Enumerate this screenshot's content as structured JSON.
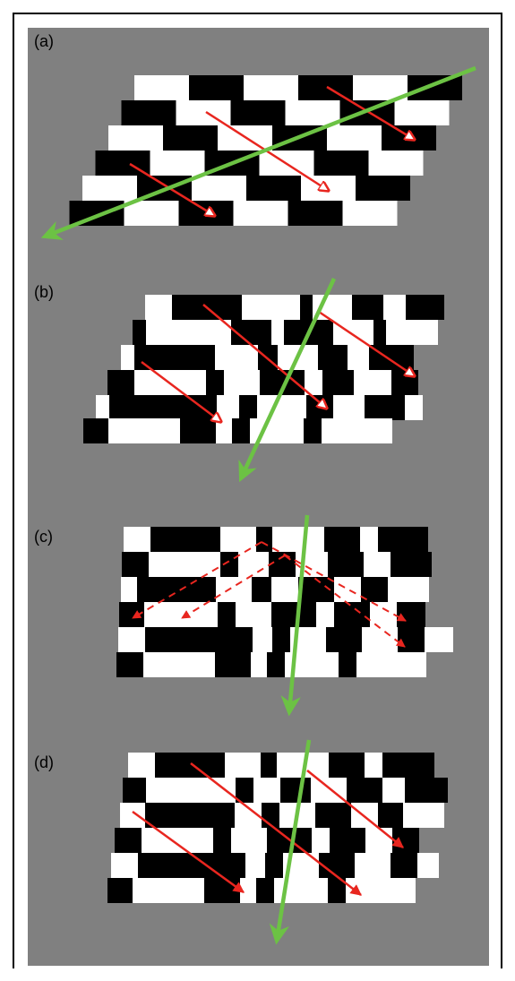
{
  "figure": {
    "background_color": "#808080",
    "frame_color": "#000000",
    "colors": {
      "red_arrow": "#e8261f",
      "green_arrow": "#6cc244",
      "black": "#000000",
      "white": "#ffffff"
    }
  },
  "panels": [
    {
      "label": "(a)",
      "description_key": "sheared-brick-pattern",
      "red_arrow_count": 3,
      "red_arrow_style": "solid, open head",
      "green_arrow_count": 1
    },
    {
      "label": "(b)",
      "description_key": "sheared-irregular-pattern",
      "red_arrow_count": 3,
      "red_arrow_style": "solid, open head",
      "green_arrow_count": 1
    },
    {
      "label": "(c)",
      "description_key": "irregular-checkerboard",
      "red_arrow_count": 4,
      "red_arrow_style": "dashed, filled head",
      "green_arrow_count": 1
    },
    {
      "label": "(d)",
      "description_key": "sheared-irregular-pattern",
      "red_arrow_count": 3,
      "red_arrow_style": "solid, filled head",
      "green_arrow_count": 1
    }
  ]
}
